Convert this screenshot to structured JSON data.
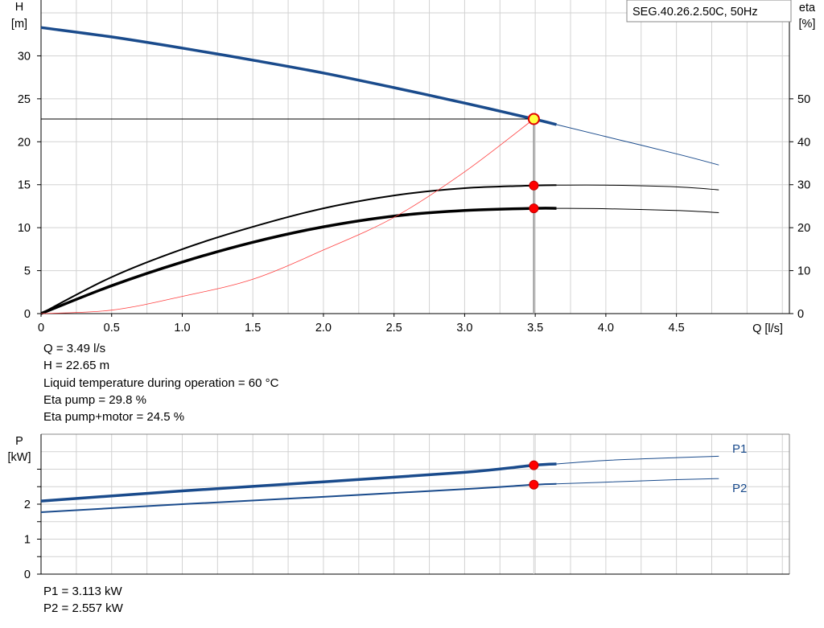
{
  "chart_data": [
    {
      "type": "line",
      "title": "SEG.40.26.2.50C, 50Hz",
      "xlabel": "Q [l/s]",
      "ylabel_left": "H\n[m]",
      "ylabel_right": "eta\n[%]",
      "xlim": [
        0,
        5.3
      ],
      "ylim_left": [
        0,
        36.5
      ],
      "ylim_right": [
        0,
        73
      ],
      "x_ticks": [
        "0",
        "0.5",
        "1.0",
        "1.5",
        "2.0",
        "2.5",
        "3.0",
        "3.5",
        "4.0",
        "4.5"
      ],
      "y_ticks_left": [
        "0",
        "5",
        "10",
        "15",
        "20",
        "25",
        "30"
      ],
      "y_ticks_right": [
        "0",
        "10",
        "20",
        "30",
        "40",
        "50"
      ],
      "grid": true,
      "series": [
        {
          "key": "head",
          "axis": "left",
          "color": "#1a4b8c",
          "x": [
            0,
            0.5,
            1.0,
            1.5,
            2.0,
            2.5,
            3.0,
            3.49,
            3.65,
            4.0,
            4.5,
            4.8
          ],
          "values": [
            33.3,
            32.2,
            30.9,
            29.5,
            28.0,
            26.3,
            24.5,
            22.65,
            22.0,
            20.6,
            18.6,
            17.3
          ]
        },
        {
          "key": "eta_pump",
          "axis": "right",
          "color": "#000000",
          "x": [
            0,
            0.5,
            1.0,
            1.5,
            2.0,
            2.5,
            3.0,
            3.49,
            3.65,
            4.0,
            4.5,
            4.8
          ],
          "values": [
            0,
            8.5,
            15.0,
            20.2,
            24.5,
            27.5,
            29.2,
            29.8,
            29.9,
            29.9,
            29.5,
            28.8
          ]
        },
        {
          "key": "eta_total",
          "axis": "right",
          "color": "#000000",
          "x": [
            0,
            0.5,
            1.0,
            1.5,
            2.0,
            2.5,
            3.0,
            3.49,
            3.65,
            4.0,
            4.5,
            4.8
          ],
          "values": [
            0,
            6.5,
            12.0,
            16.6,
            20.2,
            22.7,
            24.0,
            24.5,
            24.5,
            24.4,
            24.0,
            23.5
          ]
        },
        {
          "key": "npsh",
          "axis": "left",
          "color": "#ff4040",
          "x": [
            0,
            0.5,
            1.0,
            1.5,
            2.0,
            2.5,
            3.0,
            3.49
          ],
          "values": [
            0,
            0.4,
            2.0,
            4.0,
            7.4,
            11.2,
            16.5,
            22.65
          ]
        }
      ],
      "operating_point": {
        "x": 3.49,
        "h": 22.65,
        "eta_pump": 29.8,
        "eta_total": 24.5
      }
    },
    {
      "type": "line",
      "ylabel": "P\n[kW]",
      "xlim": [
        0,
        5.3
      ],
      "ylim": [
        0,
        4
      ],
      "y_ticks": [
        "0",
        "1",
        "2"
      ],
      "grid": true,
      "series": [
        {
          "name": "P1",
          "color": "#1a4b8c",
          "x": [
            0,
            1.0,
            2.0,
            3.0,
            3.49,
            3.65,
            4.0,
            4.5,
            4.8
          ],
          "values": [
            2.09,
            2.38,
            2.64,
            2.91,
            3.113,
            3.15,
            3.25,
            3.33,
            3.37
          ]
        },
        {
          "name": "P2",
          "color": "#1a4b8c",
          "x": [
            0,
            1.0,
            2.0,
            3.0,
            3.49,
            3.65,
            4.0,
            4.5,
            4.8
          ],
          "values": [
            1.77,
            2.0,
            2.21,
            2.43,
            2.557,
            2.58,
            2.63,
            2.7,
            2.73
          ]
        }
      ],
      "operating_point": {
        "x": 3.49,
        "P1": 3.113,
        "P2": 2.557
      }
    }
  ],
  "info_upper": {
    "q": "Q = 3.49 l/s",
    "h": "H = 22.65 m",
    "temp": "Liquid temperature during operation = 60 °C",
    "eta_pump": "Eta pump = 29.8 %",
    "eta_total": "Eta pump+motor = 24.5 %"
  },
  "info_lower": {
    "p1": "P1 = 3.113 kW",
    "p2": "P2 = 2.557 kW"
  }
}
